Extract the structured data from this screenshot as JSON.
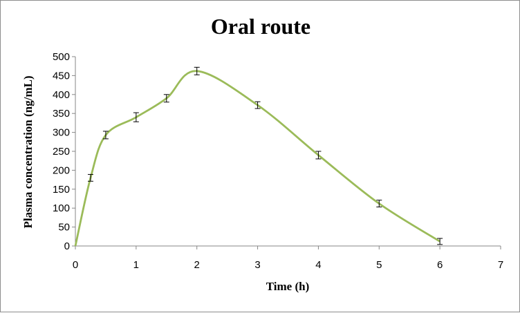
{
  "chart_data": {
    "type": "line",
    "title": "Oral route",
    "xlabel": "Time (h)",
    "ylabel": "Plasma concentration (ng/mL)",
    "xlim": [
      0,
      7
    ],
    "ylim": [
      0,
      500
    ],
    "xticks": [
      0,
      1,
      2,
      3,
      4,
      5,
      6,
      7
    ],
    "yticks": [
      0,
      50,
      100,
      150,
      200,
      250,
      300,
      350,
      400,
      450,
      500
    ],
    "grid": false,
    "legend": "none",
    "series": [
      {
        "color": "#9bbb59",
        "smooth": true,
        "x": [
          0,
          0.25,
          0.5,
          1,
          1.5,
          2,
          3,
          4,
          5,
          6
        ],
        "y": [
          0,
          180,
          293,
          340,
          390,
          462,
          372,
          240,
          112,
          12
        ],
        "error": [
          0,
          9,
          10,
          12,
          10,
          10,
          9,
          10,
          9,
          8
        ]
      }
    ]
  }
}
